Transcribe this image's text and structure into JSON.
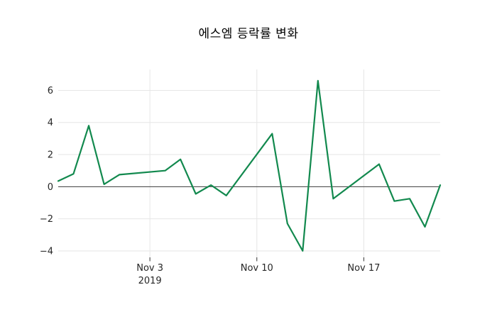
{
  "title": "에스엠 등락률 변화",
  "colors": {
    "line": "#12894e",
    "grid": "#e6e6e6",
    "zero_line": "#3a3a3a",
    "tick": "#333333",
    "tick_label": "#262626",
    "background": "#ffffff",
    "title_color": "#000000"
  },
  "chart_data": {
    "type": "line",
    "title": "에스엠 등락률 변화",
    "xlabel": "",
    "ylabel": "",
    "grid": true,
    "legend": "none",
    "xlim_days": [
      0,
      25
    ],
    "ylim": [
      -4.4,
      7.3
    ],
    "x_ticks": [
      {
        "day": 6,
        "label": "Nov 3",
        "sublabel": "2019"
      },
      {
        "day": 13,
        "label": "Nov 10",
        "sublabel": ""
      },
      {
        "day": 20,
        "label": "Nov 17",
        "sublabel": ""
      }
    ],
    "y_ticks": [
      -4,
      -2,
      0,
      2,
      4,
      6
    ],
    "zero_line": true,
    "series": [
      {
        "name": "에스엠 등락률 (%)",
        "points": [
          {
            "date": "Oct 28",
            "day": 0,
            "value": 0.35
          },
          {
            "date": "Oct 29",
            "day": 1,
            "value": 0.8
          },
          {
            "date": "Oct 30",
            "day": 2,
            "value": 3.8
          },
          {
            "date": "Oct 31",
            "day": 3,
            "value": 0.15
          },
          {
            "date": "Nov 1",
            "day": 4,
            "value": 0.75
          },
          {
            "date": "Nov 4",
            "day": 7,
            "value": 1.0
          },
          {
            "date": "Nov 5",
            "day": 8,
            "value": 1.7
          },
          {
            "date": "Nov 6",
            "day": 9,
            "value": -0.45
          },
          {
            "date": "Nov 7",
            "day": 10,
            "value": 0.1
          },
          {
            "date": "Nov 8",
            "day": 11,
            "value": -0.55
          },
          {
            "date": "Nov 11",
            "day": 14,
            "value": 3.3
          },
          {
            "date": "Nov 12",
            "day": 15,
            "value": -2.3
          },
          {
            "date": "Nov 13",
            "day": 16,
            "value": -4.0
          },
          {
            "date": "Nov 14",
            "day": 17,
            "value": 6.6
          },
          {
            "date": "Nov 15",
            "day": 18,
            "value": -0.75
          },
          {
            "date": "Nov 18",
            "day": 21,
            "value": 1.4
          },
          {
            "date": "Nov 19",
            "day": 22,
            "value": -0.9
          },
          {
            "date": "Nov 20",
            "day": 23,
            "value": -0.75
          },
          {
            "date": "Nov 21",
            "day": 24,
            "value": -2.5
          },
          {
            "date": "Nov 22",
            "day": 25,
            "value": 0.1
          }
        ]
      }
    ]
  }
}
